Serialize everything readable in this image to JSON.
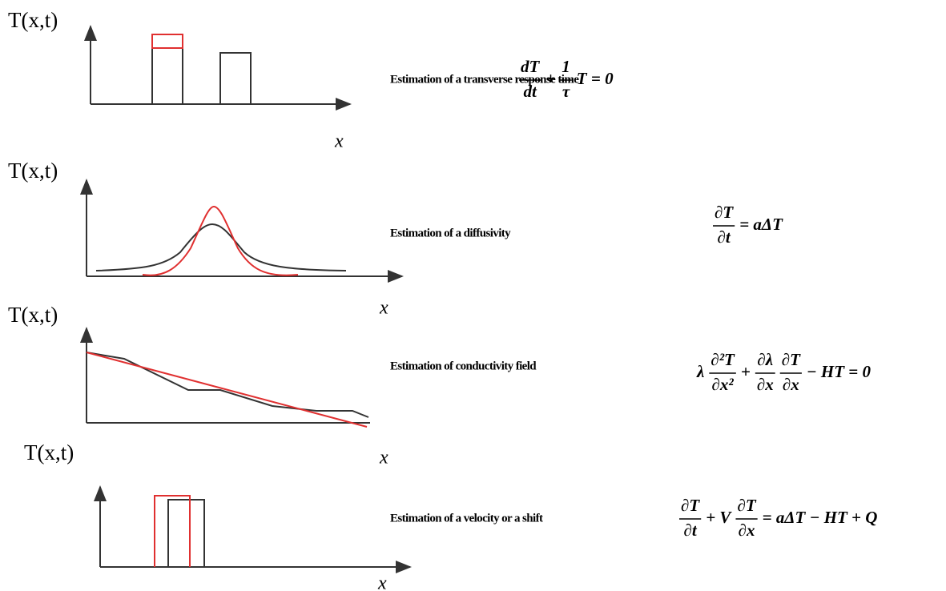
{
  "panels": [
    {
      "y_label": "T(x,t)",
      "x_label": "x",
      "description": "Estimation of a transverse response time",
      "equation": [
        {
          "num": "dT",
          "den": "dt"
        },
        {
          "text": "+"
        },
        {
          "num": "1",
          "den": "τ"
        },
        {
          "text": "T = 0"
        }
      ]
    },
    {
      "y_label": "T(x,t)",
      "x_label": "x",
      "description": "Estimation of a diffusivity",
      "equation": [
        {
          "num": "∂T",
          "den": "∂t"
        },
        {
          "text": "= aΔT"
        }
      ]
    },
    {
      "y_label": "T(x,t)",
      "x_label": "x",
      "description": "Estimation of conductivity field",
      "equation": [
        {
          "text": "λ"
        },
        {
          "num": "∂²T",
          "den": "∂x²"
        },
        {
          "text": "+"
        },
        {
          "num": "∂λ",
          "den": "∂x"
        },
        {
          "num": "∂T",
          "den": "∂x"
        },
        {
          "text": "− HT = 0"
        }
      ]
    },
    {
      "y_label": "T(x,t)",
      "x_label": "x",
      "description": "Estimation of a velocity or a shift",
      "equation": [
        {
          "num": "∂T",
          "den": "∂t"
        },
        {
          "text": "+ V"
        },
        {
          "num": "∂T",
          "den": "∂x"
        },
        {
          "text": "= aΔT − HT + Q"
        }
      ]
    }
  ]
}
